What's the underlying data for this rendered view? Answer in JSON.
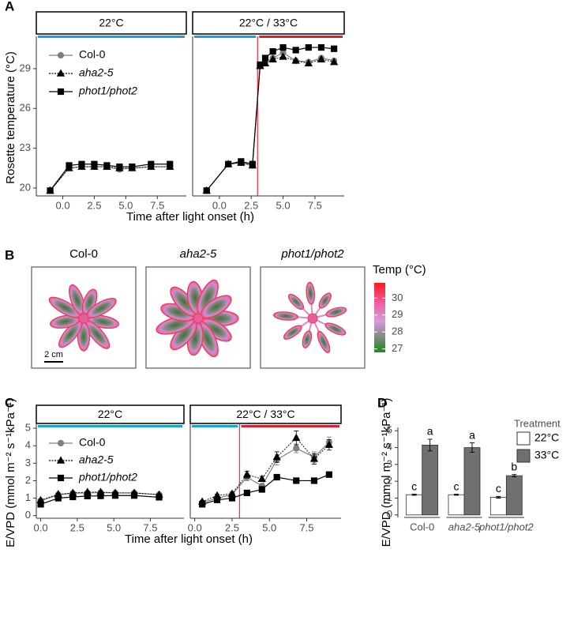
{
  "chart_data": [
    {
      "panel": "A",
      "type": "line",
      "y_label": "Rosette temperature (°C)",
      "x_label": "Time after light onset (h)",
      "ylim": [
        19.4,
        31.2
      ],
      "yticks": [
        20,
        23,
        26,
        29
      ],
      "xlim": [
        -2.1,
        9.8
      ],
      "xticks": [
        {
          "value": 0,
          "label": "0.0"
        },
        {
          "value": 2.5,
          "label": "2.5"
        },
        {
          "value": 5,
          "label": "5.0"
        },
        {
          "value": 7.5,
          "label": "7.5"
        }
      ],
      "treatment_start": 3,
      "treatment_line_color": "#e8394a",
      "control_color": "#1ba3d8",
      "heat_color": "#e11f26",
      "facets": [
        {
          "strip": "22°C",
          "x": [
            -1,
            0.5,
            1.5,
            2.5,
            3.5,
            4.5,
            5.5,
            7,
            8.5
          ]
        },
        {
          "strip": "22°C / 33°C",
          "heat": true,
          "x": [
            -1,
            0.7,
            1.7,
            2.6,
            3.2,
            3.6,
            4.2,
            5,
            6,
            7,
            8,
            9
          ]
        }
      ],
      "series": [
        {
          "name": "Col-0",
          "color": "#7f7f7f",
          "marker": "circle",
          "dash": false,
          "font_style": "normal",
          "values": [
            [
              19.8,
              21.5,
              21.6,
              21.6,
              21.6,
              21.4,
              21.5,
              21.6,
              21.6
            ],
            [
              19.8,
              21.8,
              21.9,
              21.7,
              29.2,
              29.5,
              29.8,
              30.2,
              29.6,
              29.5,
              29.8,
              29.6
            ]
          ]
        },
        {
          "name": "aha2-5",
          "color": "#000000",
          "marker": "triangle",
          "dash": true,
          "font_style": "italic",
          "values": [
            [
              19.8,
              21.5,
              21.6,
              21.6,
              21.6,
              21.5,
              21.5,
              21.6,
              21.6
            ],
            [
              19.8,
              21.8,
              21.9,
              21.7,
              29.2,
              29.4,
              29.7,
              29.9,
              29.6,
              29.4,
              29.7,
              29.5
            ]
          ]
        },
        {
          "name": "phot1/phot2",
          "color": "#000000",
          "marker": "square",
          "dash": false,
          "font_style": "italic",
          "values": [
            [
              19.8,
              21.7,
              21.8,
              21.8,
              21.7,
              21.6,
              21.6,
              21.8,
              21.8
            ],
            [
              19.8,
              21.8,
              22.0,
              21.8,
              29.3,
              29.8,
              30.3,
              30.6,
              30.4,
              30.6,
              30.6,
              30.5
            ]
          ]
        }
      ]
    },
    {
      "panel": "C",
      "type": "line",
      "y_label": "E/VPD (mmol m⁻² s⁻¹kPa⁻¹)",
      "x_label": "Time after light onset (h)",
      "ylim": [
        -0.15,
        5.05
      ],
      "yticks": [
        0,
        1,
        2,
        3,
        4,
        5
      ],
      "xlim": [
        -0.3,
        9.8
      ],
      "xticks": [
        {
          "value": 0,
          "label": "0.0"
        },
        {
          "value": 2.5,
          "label": "2.5"
        },
        {
          "value": 5,
          "label": "5.0"
        },
        {
          "value": 7.5,
          "label": "7.5"
        }
      ],
      "treatment_start": 3,
      "treatment_line_color": "#e8394a",
      "control_color": "#1ba3d8",
      "heat_color": "#e11f26",
      "facets": [
        {
          "strip": "22°C",
          "x": [
            0.0,
            1.2,
            2.2,
            3.2,
            4.1,
            5.1,
            6.4,
            8.1
          ]
        },
        {
          "strip": "22°C / 33°C",
          "heat": true,
          "x": [
            0.5,
            1.5,
            2.5,
            3.5,
            4.5,
            5.5,
            6.8,
            8.0,
            9.0
          ]
        }
      ],
      "series": [
        {
          "name": "Col-0",
          "color": "#7f7f7f",
          "marker": "circle",
          "dash": false,
          "font_style": "normal",
          "values": [
            [
              0.85,
              1.2,
              1.28,
              1.3,
              1.32,
              1.3,
              1.3,
              1.2
            ],
            [
              0.75,
              1.0,
              1.2,
              2.2,
              1.7,
              3.2,
              3.85,
              3.35,
              4.2
            ]
          ],
          "errors": [
            [
              0.05,
              0.05,
              0.05,
              0.05,
              0.05,
              0.05,
              0.05,
              0.05
            ],
            [
              0.05,
              0.08,
              0.1,
              0.2,
              0.1,
              0.3,
              0.25,
              0.3,
              0.3
            ]
          ]
        },
        {
          "name": "aha2-5",
          "color": "#000000",
          "marker": "triangle",
          "dash": true,
          "font_style": "italic",
          "values": [
            [
              0.88,
              1.22,
              1.3,
              1.35,
              1.35,
              1.3,
              1.3,
              1.2
            ],
            [
              0.8,
              1.15,
              1.25,
              2.35,
              2.1,
              3.35,
              4.45,
              3.25,
              4.05
            ]
          ],
          "errors": [
            [
              0.05,
              0.05,
              0.05,
              0.05,
              0.05,
              0.05,
              0.05,
              0.05
            ],
            [
              0.05,
              0.08,
              0.1,
              0.2,
              0.15,
              0.3,
              0.4,
              0.3,
              0.3
            ]
          ]
        },
        {
          "name": "phot1/phot2",
          "color": "#000000",
          "marker": "square",
          "dash": false,
          "font_style": "italic",
          "values": [
            [
              0.65,
              1.0,
              1.07,
              1.12,
              1.13,
              1.15,
              1.15,
              1.05
            ],
            [
              0.65,
              0.9,
              1.0,
              1.3,
              1.5,
              2.2,
              2.0,
              2.0,
              2.35
            ]
          ],
          "errors": [
            [
              0.04,
              0.04,
              0.04,
              0.04,
              0.04,
              0.04,
              0.04,
              0.04
            ],
            [
              0.04,
              0.05,
              0.05,
              0.06,
              0.08,
              0.1,
              0.05,
              0.08,
              0.05
            ]
          ]
        }
      ]
    },
    {
      "panel": "D",
      "type": "bar",
      "y_label": "E/VPD (mmol m⁻² s⁻¹kPa⁻¹)",
      "categories": [
        "Col-0",
        "aha2-5",
        "phot1/phot2"
      ],
      "category_font_style": [
        "normal",
        "italic",
        "italic"
      ],
      "ylim": [
        -0.15,
        5.2
      ],
      "yticks": [
        0,
        1,
        2,
        3,
        4,
        5
      ],
      "legend_title": "Treatment",
      "series": [
        {
          "name": "22°C",
          "color": "#ffffff",
          "values": [
            1.2,
            1.2,
            1.05
          ],
          "errors": [
            0.03,
            0.03,
            0.05
          ],
          "letters": [
            "c",
            "c",
            "c"
          ]
        },
        {
          "name": "33°C",
          "color": "#707070",
          "values": [
            4.15,
            4.0,
            2.33
          ],
          "errors": [
            0.35,
            0.28,
            0.07
          ],
          "letters": [
            "a",
            "a",
            "b"
          ]
        }
      ]
    }
  ],
  "thermal_images": {
    "panel": "B",
    "images": [
      {
        "label": "Col-0",
        "font_style": "normal"
      },
      {
        "label": "aha2-5",
        "font_style": "italic"
      },
      {
        "label": "phot1/phot2",
        "font_style": "italic"
      }
    ],
    "scale_bar": "2 cm",
    "colorbar": {
      "title": "Temp (°C)",
      "range": [
        26.8,
        30.9
      ],
      "ticks": [
        27,
        28,
        29,
        30
      ]
    }
  }
}
